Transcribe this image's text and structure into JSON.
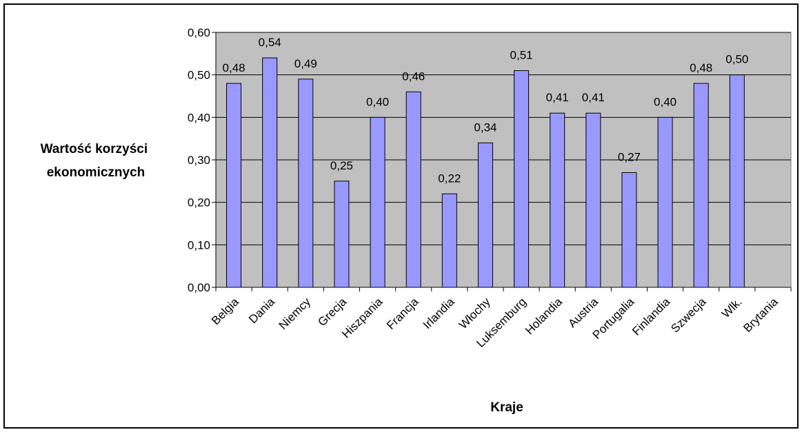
{
  "chart_data": {
    "type": "bar",
    "title": "",
    "xlabel": "Kraje",
    "ylabel_lines": [
      "Wartość korzyści",
      "ekonomicznych"
    ],
    "ylim": [
      0,
      0.6
    ],
    "yticks": [
      0,
      0.1,
      0.2,
      0.3,
      0.4,
      0.5,
      0.6
    ],
    "ytick_labels": [
      "0,00",
      "0,10",
      "0,20",
      "0,30",
      "0,40",
      "0,50",
      "0,60"
    ],
    "categories": [
      "Belgia",
      "Dania",
      "Niemcy",
      "Grecja",
      "Hiszpania",
      "Francja",
      "Irlandia",
      "Włochy",
      "Luksemburg",
      "Holandia",
      "Austria",
      "Portugalia",
      "Finlandia",
      "Szwecja",
      "Wlk.",
      "Brytania"
    ],
    "values": [
      0.48,
      0.54,
      0.49,
      0.25,
      0.4,
      0.46,
      0.22,
      0.34,
      0.51,
      0.41,
      0.41,
      0.27,
      0.4,
      0.48,
      0.5,
      null
    ],
    "value_labels": [
      "0,48",
      "0,54",
      "0,49",
      "0,25",
      "0,40",
      "0,46",
      "0,22",
      "0,34",
      "0,51",
      "0,41",
      "0,41",
      "0,27",
      "0,40",
      "0,48",
      "0,50",
      ""
    ],
    "grid": true,
    "legend": "none",
    "colors": {
      "bar": "#9999ff",
      "plot_bg": "#c0c0c0",
      "grid": "#000000"
    }
  }
}
